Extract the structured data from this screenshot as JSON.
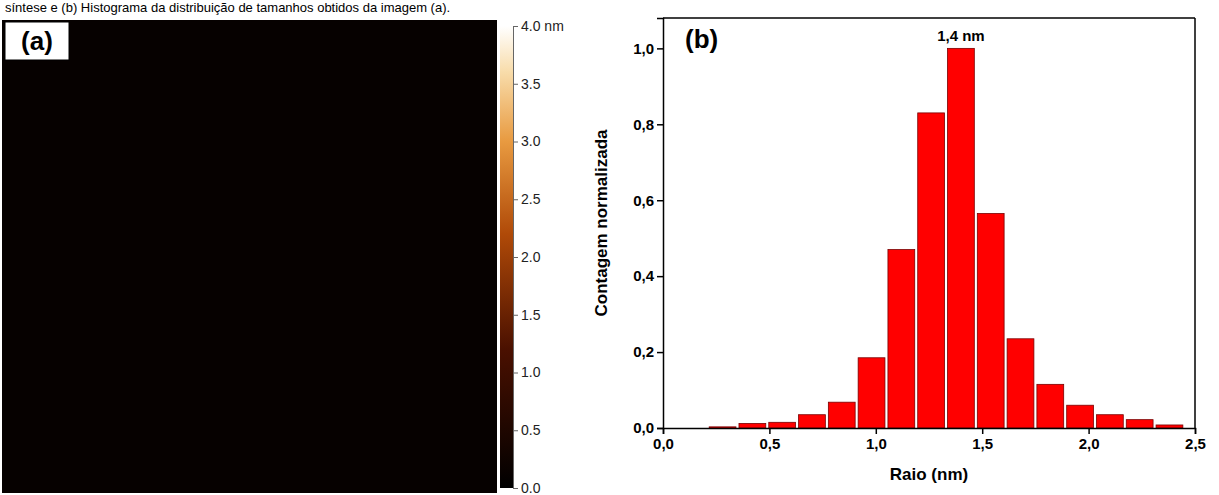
{
  "caption": "síntese e (b) Histograma da distribuição de tamanhos obtidos da imagem (a).",
  "chart_data": [
    {
      "type": "image",
      "title": "(a)",
      "colorbar_range": [
        0,
        4
      ],
      "colorbar_ticks": [
        {
          "value": 4,
          "label": "4.0 nm"
        },
        {
          "value": 3.5,
          "label": "3.5"
        },
        {
          "value": 3,
          "label": "3.0"
        },
        {
          "value": 2.5,
          "label": "2.5"
        },
        {
          "value": 2,
          "label": "2.0"
        },
        {
          "value": 1.5,
          "label": "1.5"
        },
        {
          "value": 1,
          "label": "1.0"
        },
        {
          "value": 0.5,
          "label": "0.5"
        },
        {
          "value": 0,
          "label": "0.0"
        }
      ]
    },
    {
      "type": "histogram",
      "title": "(b)",
      "annotation": "1,4 nm",
      "x_label": "Raio (nm)",
      "y_label": "Contagem normalizada",
      "bins": [
        0.21,
        0.35,
        0.49,
        0.63,
        0.77,
        0.91,
        1.05,
        1.19,
        1.33,
        1.47,
        1.61,
        1.75,
        1.89,
        2.03,
        2.17,
        2.31,
        2.45
      ],
      "values": [
        0.003,
        0.012,
        0.015,
        0.035,
        0.068,
        0.185,
        0.47,
        0.83,
        1.0,
        0.565,
        0.235,
        0.115,
        0.06,
        0.035,
        0.022,
        0.008
      ],
      "color": "#ff0000",
      "xlim": [
        0,
        2.5
      ],
      "xticks": [
        {
          "value": 0,
          "label": "0,0"
        },
        {
          "value": 0.5,
          "label": "0,5"
        },
        {
          "value": 1,
          "label": "1,0"
        },
        {
          "value": 1.5,
          "label": "1,5"
        },
        {
          "value": 2,
          "label": "2,0"
        },
        {
          "value": 2.5,
          "label": "2,5"
        }
      ],
      "ylim": [
        0,
        1.08
      ],
      "yticks": [
        {
          "value": 0,
          "label": "0,0"
        },
        {
          "value": 0.2,
          "label": "0,2"
        },
        {
          "value": 0.4,
          "label": "0,4"
        },
        {
          "value": 0.6,
          "label": "0,6"
        },
        {
          "value": 0.8,
          "label": "0,8"
        },
        {
          "value": 1,
          "label": "1,0"
        }
      ],
      "grid": false
    }
  ]
}
